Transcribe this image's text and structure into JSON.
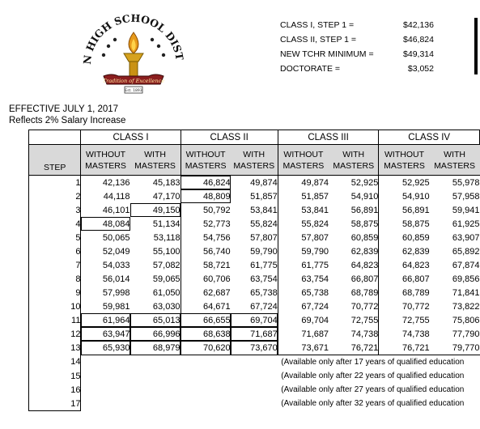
{
  "logo": {
    "arc_text": "KERN HIGH SCHOOL DISTRICT",
    "banner": "Tradition of Excellence",
    "est": "Est. 1893"
  },
  "summary": [
    {
      "label": "CLASS I, STEP 1 =",
      "value": "$42,136"
    },
    {
      "label": "CLASS II, STEP 1 =",
      "value": "$46,824"
    },
    {
      "label": "NEW TCHR MINIMUM =",
      "value": "$49,314"
    },
    {
      "label": "DOCTORATE =",
      "value": "$3,052"
    }
  ],
  "effective": "EFFECTIVE JULY 1, 2017",
  "reflects": "Reflects 2%  Salary Increase",
  "table": {
    "groups": [
      "CLASS I",
      "CLASS II",
      "CLASS III",
      "CLASS IV"
    ],
    "step_header": "STEP",
    "sub_top": [
      "WITHOUT",
      "WITH",
      "WITHOUT",
      "WITH",
      "WITHOUT",
      "WITH",
      "WITHOUT",
      "WITH"
    ],
    "sub_bottom": [
      "MASTERS",
      "MASTERS",
      "MASTERS",
      "MASTERS",
      "MASTERS",
      "MASTERS",
      "MASTERS",
      "MASTERS"
    ],
    "rows": [
      {
        "step": "1",
        "cells": [
          "42,136",
          "45,183",
          "46,824",
          "49,874",
          "49,874",
          "52,925",
          "52,925",
          "55,978"
        ]
      },
      {
        "step": "2",
        "cells": [
          "44,118",
          "47,170",
          "48,809",
          "51,857",
          "51,857",
          "54,910",
          "54,910",
          "57,958"
        ]
      },
      {
        "step": "3",
        "cells": [
          "46,101",
          "49,150",
          "50,792",
          "53,841",
          "53,841",
          "56,891",
          "56,891",
          "59,941"
        ]
      },
      {
        "step": "4",
        "cells": [
          "48,084",
          "51,134",
          "52,773",
          "55,824",
          "55,824",
          "58,875",
          "58,875",
          "61,925"
        ]
      },
      {
        "step": "5",
        "cells": [
          "50,065",
          "53,118",
          "54,756",
          "57,807",
          "57,807",
          "60,859",
          "60,859",
          "63,907"
        ]
      },
      {
        "step": "6",
        "cells": [
          "52,049",
          "55,100",
          "56,740",
          "59,790",
          "59,790",
          "62,839",
          "62,839",
          "65,892"
        ]
      },
      {
        "step": "7",
        "cells": [
          "54,033",
          "57,082",
          "58,721",
          "61,775",
          "61,775",
          "64,823",
          "64,823",
          "67,874"
        ]
      },
      {
        "step": "8",
        "cells": [
          "56,014",
          "59,065",
          "60,706",
          "63,754",
          "63,754",
          "66,807",
          "66,807",
          "69,856"
        ]
      },
      {
        "step": "9",
        "cells": [
          "57,998",
          "61,050",
          "62,687",
          "65,738",
          "65,738",
          "68,789",
          "68,789",
          "71,841"
        ]
      },
      {
        "step": "10",
        "cells": [
          "59,981",
          "63,030",
          "64,671",
          "67,724",
          "67,724",
          "70,772",
          "70,772",
          "73,822"
        ]
      },
      {
        "step": "11",
        "cells": [
          "61,964",
          "65,013",
          "66,655",
          "69,704",
          "69,704",
          "72,755",
          "72,755",
          "75,806"
        ]
      },
      {
        "step": "12",
        "cells": [
          "63,947",
          "66,996",
          "68,638",
          "71,687",
          "71,687",
          "74,738",
          "74,738",
          "77,790"
        ]
      },
      {
        "step": "13",
        "cells": [
          "65,930",
          "68,979",
          "70,620",
          "73,670",
          "73,671",
          "76,721",
          "76,721",
          "79,770"
        ]
      }
    ],
    "notes": [
      {
        "step": "14",
        "text": "(Available only after 17 years of qualified education"
      },
      {
        "step": "15",
        "text": "(Available only after 22 years of qualified education"
      },
      {
        "step": "16",
        "text": "(Available only after 27 years of qualified education"
      },
      {
        "step": "17",
        "text": "(Available only after 32 years of qualified education"
      }
    ]
  }
}
